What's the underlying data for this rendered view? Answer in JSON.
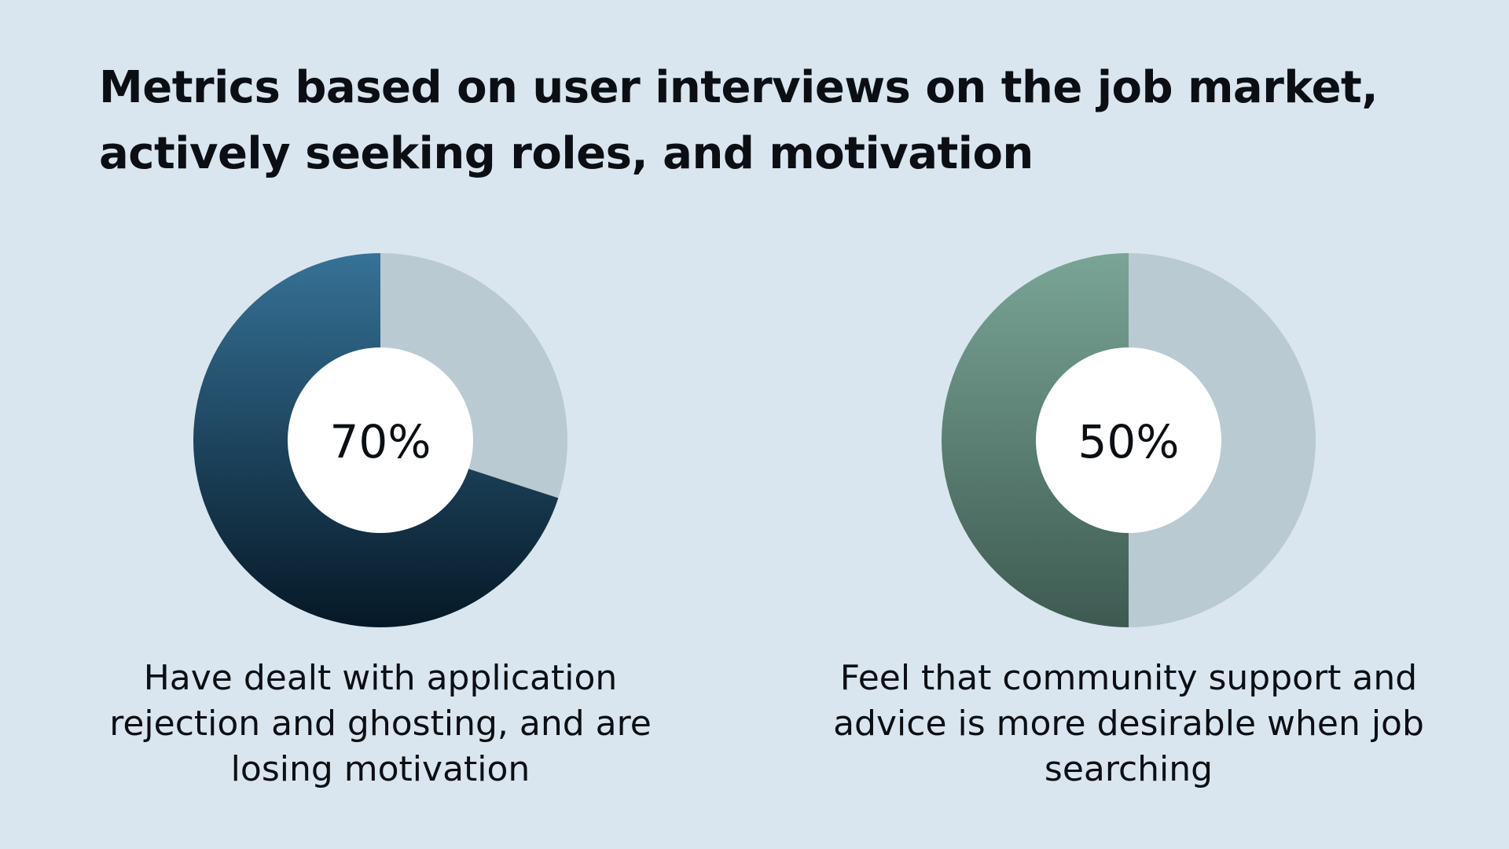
{
  "title": "Metrics based on user interviews on the job market, actively seeking roles, and motivation",
  "colors": {
    "background": "#d9e6ef",
    "remainder": "#b9cad2",
    "left_fill_top": "#367297",
    "left_fill_bottom": "#061826",
    "right_fill_top": "#7aa596",
    "right_fill_bottom": "#3d5a51",
    "hole": "#ffffff"
  },
  "chart_data": [
    {
      "type": "pie",
      "value": 70,
      "label": "70%",
      "categories": [
        "Have dealt with application rejection and ghosting, and are losing motivation",
        ""
      ],
      "values": [
        70,
        30
      ],
      "caption": "Have dealt with application rejection and ghosting, and are losing motivation"
    },
    {
      "type": "pie",
      "value": 50,
      "label": "50%",
      "categories": [
        "Feel that community support and advice is more desirable when job searching",
        ""
      ],
      "values": [
        50,
        50
      ],
      "caption": "Feel that community support and advice is more desirable when job searching"
    }
  ]
}
